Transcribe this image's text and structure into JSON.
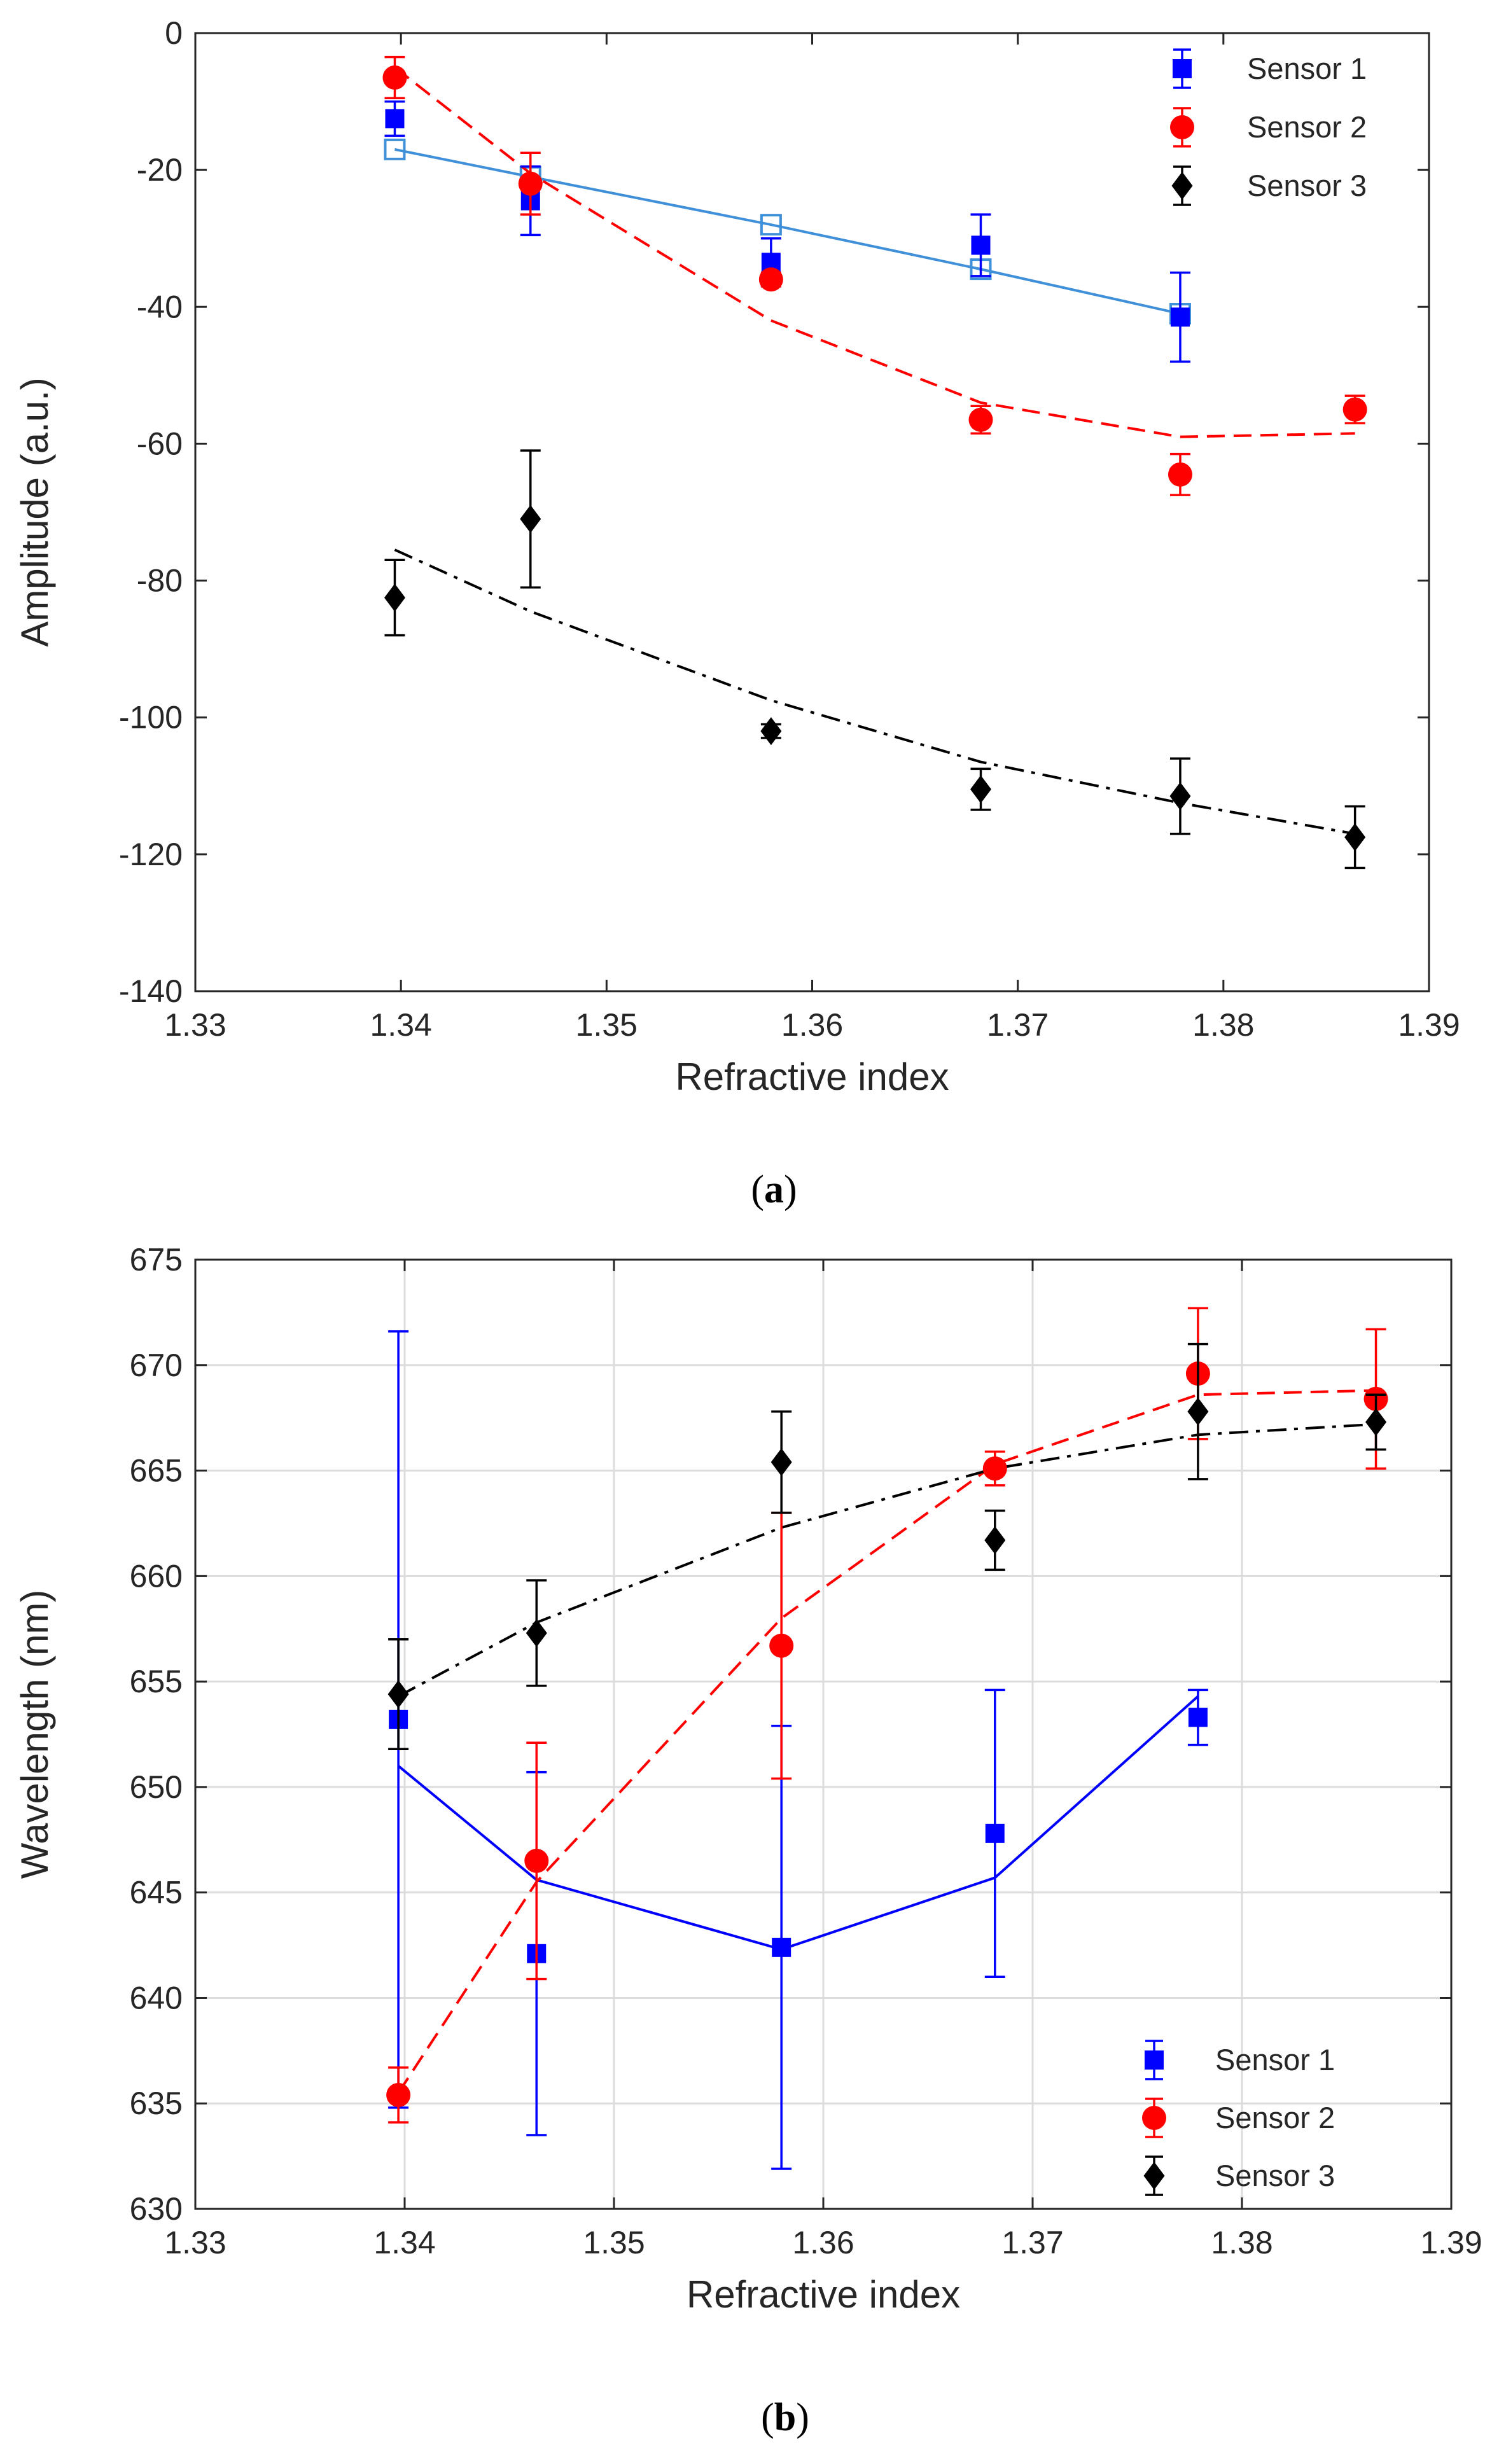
{
  "chart_data": [
    {
      "id": "a",
      "type": "scatter",
      "caption": {
        "open": "(",
        "letter": "a",
        "close": ")"
      },
      "xlabel": "Refractive index",
      "ylabel": "Amplitude (a.u.)",
      "xlim": [
        1.33,
        1.39
      ],
      "ylim": [
        -140,
        0
      ],
      "xticks": [
        "1.33",
        "1.34",
        "1.35",
        "1.36",
        "1.37",
        "1.38",
        "1.39"
      ],
      "yticks": [
        "-140",
        "-120",
        "-100",
        "-80",
        "-60",
        "-40",
        "-20",
        "0"
      ],
      "xtick_values": [
        1.33,
        1.34,
        1.35,
        1.36,
        1.37,
        1.38,
        1.39
      ],
      "ytick_values": [
        -140,
        -120,
        -100,
        -80,
        -60,
        -40,
        -20,
        0
      ],
      "grid": false,
      "legend_position": "top-right",
      "series": [
        {
          "name": "Sensor 1",
          "marker": "square",
          "color": "#0000ff",
          "points": [
            {
              "x": 1.3397,
              "y": -12.5,
              "err": 2.5
            },
            {
              "x": 1.3463,
              "y": -24.5,
              "err": 5
            },
            {
              "x": 1.358,
              "y": -33.5,
              "err": 3.5
            },
            {
              "x": 1.3682,
              "y": -31,
              "err": 4.5
            },
            {
              "x": 1.3779,
              "y": -41.5,
              "err": 6.5
            }
          ],
          "fit": {
            "style": "solid",
            "color": "#3f90d8",
            "open_markers": true,
            "points": [
              {
                "x": 1.3397,
                "y": -17
              },
              {
                "x": 1.3463,
                "y": -21
              },
              {
                "x": 1.358,
                "y": -28
              },
              {
                "x": 1.3682,
                "y": -34.5
              },
              {
                "x": 1.3779,
                "y": -41
              }
            ]
          }
        },
        {
          "name": "Sensor 2",
          "marker": "circle",
          "color": "#ff0000",
          "points": [
            {
              "x": 1.3397,
              "y": -6.5,
              "err": 3
            },
            {
              "x": 1.3463,
              "y": -22,
              "err": 4.5
            },
            {
              "x": 1.358,
              "y": -36,
              "err": 1
            },
            {
              "x": 1.3682,
              "y": -56.5,
              "err": 2
            },
            {
              "x": 1.3779,
              "y": -64.5,
              "err": 3
            },
            {
              "x": 1.3864,
              "y": -55,
              "err": 2
            }
          ],
          "fit": {
            "style": "dashed",
            "color": "#ff0000",
            "points": [
              {
                "x": 1.3397,
                "y": -5
              },
              {
                "x": 1.3463,
                "y": -20.5
              },
              {
                "x": 1.358,
                "y": -42
              },
              {
                "x": 1.3682,
                "y": -54
              },
              {
                "x": 1.3779,
                "y": -59
              },
              {
                "x": 1.3864,
                "y": -58.5
              }
            ]
          }
        },
        {
          "name": "Sensor 3",
          "marker": "diamond",
          "color": "#000000",
          "points": [
            {
              "x": 1.3397,
              "y": -82.5,
              "err": 5.5
            },
            {
              "x": 1.3463,
              "y": -71,
              "err": 10
            },
            {
              "x": 1.358,
              "y": -102,
              "err": 1
            },
            {
              "x": 1.3682,
              "y": -110.5,
              "err": 3
            },
            {
              "x": 1.3779,
              "y": -111.5,
              "err": 5.5
            },
            {
              "x": 1.3864,
              "y": -117.5,
              "err": 4.5
            }
          ],
          "fit": {
            "style": "dashdot",
            "color": "#000000",
            "points": [
              {
                "x": 1.3397,
                "y": -75.5
              },
              {
                "x": 1.3463,
                "y": -84.5
              },
              {
                "x": 1.358,
                "y": -97.5
              },
              {
                "x": 1.3682,
                "y": -106.5
              },
              {
                "x": 1.3779,
                "y": -112.5
              },
              {
                "x": 1.3864,
                "y": -117
              }
            ]
          }
        }
      ]
    },
    {
      "id": "b",
      "type": "scatter",
      "caption": {
        "open": "(",
        "letter": "b",
        "close": ")"
      },
      "xlabel": "Refractive index",
      "ylabel": "Wavelength (nm)",
      "xlim": [
        1.33,
        1.39
      ],
      "ylim": [
        630,
        675
      ],
      "xticks": [
        "1.33",
        "1.34",
        "1.35",
        "1.36",
        "1.37",
        "1.38",
        "1.39"
      ],
      "yticks": [
        "630",
        "635",
        "640",
        "645",
        "650",
        "655",
        "660",
        "665",
        "670",
        "675"
      ],
      "xtick_values": [
        1.33,
        1.34,
        1.35,
        1.36,
        1.37,
        1.38,
        1.39
      ],
      "ytick_values": [
        630,
        635,
        640,
        645,
        650,
        655,
        660,
        665,
        670,
        675
      ],
      "grid": true,
      "legend_position": "bottom-right",
      "series": [
        {
          "name": "Sensor 1",
          "marker": "square",
          "color": "#0000ff",
          "points": [
            {
              "x": 1.3397,
              "y": 653.2,
              "err": 18.4
            },
            {
              "x": 1.3463,
              "y": 642.1,
              "err": 8.6
            },
            {
              "x": 1.358,
              "y": 642.4,
              "err": 10.5
            },
            {
              "x": 1.3682,
              "y": 647.8,
              "err": 6.8
            },
            {
              "x": 1.3779,
              "y": 653.3,
              "err": 1.3
            }
          ],
          "fit": {
            "style": "solid",
            "color": "#0000ff",
            "points": [
              {
                "x": 1.3397,
                "y": 651
              },
              {
                "x": 1.3463,
                "y": 645.6
              },
              {
                "x": 1.358,
                "y": 642.3
              },
              {
                "x": 1.3682,
                "y": 645.7
              },
              {
                "x": 1.3779,
                "y": 654.3
              }
            ]
          }
        },
        {
          "name": "Sensor 2",
          "marker": "circle",
          "color": "#ff0000",
          "points": [
            {
              "x": 1.3397,
              "y": 635.4,
              "err": 1.3
            },
            {
              "x": 1.3463,
              "y": 646.5,
              "err": 5.6
            },
            {
              "x": 1.358,
              "y": 656.7,
              "err": 6.3
            },
            {
              "x": 1.3682,
              "y": 665.1,
              "err": 0.8
            },
            {
              "x": 1.3779,
              "y": 669.6,
              "err": 3.1
            },
            {
              "x": 1.3864,
              "y": 668.4,
              "err": 3.3
            }
          ],
          "fit": {
            "style": "dashed",
            "color": "#ff0000",
            "points": [
              {
                "x": 1.3397,
                "y": 635.5
              },
              {
                "x": 1.3463,
                "y": 645.5
              },
              {
                "x": 1.358,
                "y": 658
              },
              {
                "x": 1.3682,
                "y": 665.3
              },
              {
                "x": 1.3779,
                "y": 668.6
              },
              {
                "x": 1.3864,
                "y": 668.8
              }
            ]
          }
        },
        {
          "name": "Sensor 3",
          "marker": "diamond",
          "color": "#000000",
          "points": [
            {
              "x": 1.3397,
              "y": 654.4,
              "err": 2.6
            },
            {
              "x": 1.3463,
              "y": 657.3,
              "err": 2.5
            },
            {
              "x": 1.358,
              "y": 665.4,
              "err": 2.4
            },
            {
              "x": 1.3682,
              "y": 661.7,
              "err": 1.4
            },
            {
              "x": 1.3779,
              "y": 667.8,
              "err": 3.2
            },
            {
              "x": 1.3864,
              "y": 667.3,
              "err": 1.3
            }
          ],
          "fit": {
            "style": "dashdot",
            "color": "#000000",
            "points": [
              {
                "x": 1.3397,
                "y": 654.3
              },
              {
                "x": 1.3463,
                "y": 657.8
              },
              {
                "x": 1.358,
                "y": 662.3
              },
              {
                "x": 1.3682,
                "y": 665.1
              },
              {
                "x": 1.3779,
                "y": 666.7
              },
              {
                "x": 1.3864,
                "y": 667.2
              }
            ]
          }
        }
      ]
    }
  ]
}
